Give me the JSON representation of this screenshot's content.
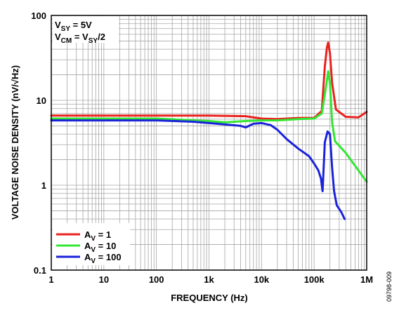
{
  "chart_data": {
    "type": "line",
    "xscale": "log",
    "yscale": "log",
    "xlim": [
      1,
      1000000
    ],
    "ylim": [
      0.1,
      100
    ],
    "xlabel": "FREQUENCY (Hz)",
    "ylabel": "VOLTAGE NOISE DENSITY (nV/√Hz)",
    "x_ticks": [
      {
        "value": 1,
        "label": "1"
      },
      {
        "value": 10,
        "label": "10"
      },
      {
        "value": 100,
        "label": "100"
      },
      {
        "value": 1000,
        "label": "1k"
      },
      {
        "value": 10000,
        "label": "10k"
      },
      {
        "value": 100000,
        "label": "100k"
      },
      {
        "value": 1000000,
        "label": "1M"
      }
    ],
    "y_ticks": [
      {
        "value": 0.1,
        "label": "0.1"
      },
      {
        "value": 1,
        "label": "1"
      },
      {
        "value": 10,
        "label": "10"
      },
      {
        "value": 100,
        "label": "100"
      }
    ],
    "grid": true,
    "legend_position": "bottom-left",
    "annotations": {
      "line1": {
        "main": "V",
        "sub": "SY",
        "rest": " = 5V"
      },
      "line2": {
        "main": "V",
        "sub": "CM",
        "rest": " = V",
        "sub2": "SY",
        "rest2": "/2"
      }
    },
    "series": [
      {
        "name_main": "A",
        "name_sub": "V",
        "name_rest": " = 1",
        "color": "#e8231f",
        "x": [
          1,
          10,
          100,
          1000,
          5000,
          10000,
          20000,
          50000,
          100000,
          140000,
          160000,
          175000,
          185000,
          200000,
          220000,
          260000,
          400000,
          700000,
          1000000
        ],
        "y": [
          6.6,
          6.6,
          6.6,
          6.6,
          6.5,
          6.1,
          6.0,
          6.2,
          6.2,
          7.5,
          25,
          42,
          48,
          36,
          16,
          7.8,
          6.4,
          6.3,
          7.3
        ]
      },
      {
        "name_main": "A",
        "name_sub": "V",
        "name_rest": " = 10",
        "color": "#33e633",
        "x": [
          1,
          10,
          100,
          1000,
          2000,
          5000,
          10000,
          20000,
          50000,
          100000,
          140000,
          170000,
          185000,
          200000,
          220000,
          250000,
          400000,
          1000000
        ],
        "y": [
          6.1,
          6.1,
          6.1,
          5.7,
          5.5,
          5.7,
          5.8,
          5.8,
          6.0,
          6.1,
          7.0,
          15,
          22,
          16,
          5.5,
          3.3,
          2.4,
          1.1
        ]
      },
      {
        "name_main": "A",
        "name_sub": "V",
        "name_rest": " = 100",
        "color": "#1a23d9",
        "x": [
          1,
          10,
          100,
          500,
          1000,
          2000,
          4000,
          5000,
          7000,
          10000,
          15000,
          20000,
          30000,
          50000,
          80000,
          100000,
          120000,
          135000,
          145000,
          160000,
          180000,
          200000,
          220000,
          240000,
          270000,
          330000,
          380000
        ],
        "y": [
          5.8,
          5.8,
          5.8,
          5.6,
          5.4,
          5.2,
          5.0,
          4.8,
          5.3,
          5.4,
          5.1,
          4.5,
          3.5,
          2.7,
          2.2,
          1.8,
          1.5,
          1.2,
          0.85,
          3.2,
          4.3,
          4.0,
          1.6,
          0.85,
          0.58,
          0.48,
          0.4
        ]
      }
    ]
  },
  "figure_code": "09798-009"
}
